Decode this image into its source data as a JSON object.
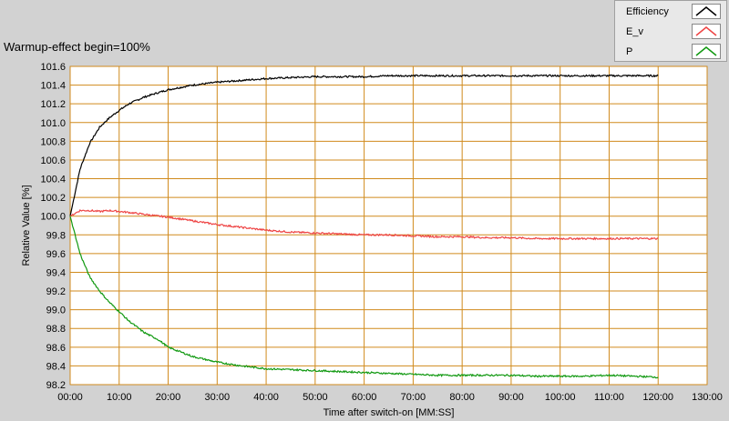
{
  "chart_data": {
    "type": "line",
    "title": "Warmup-effect begin=100%",
    "xlabel": "Time after switch-on [MM:SS]",
    "ylabel": "Relative Value [%]",
    "xlim": [
      0,
      130
    ],
    "ylim": [
      98.2,
      101.6
    ],
    "x_ticks": [
      "00:00",
      "10:00",
      "20:00",
      "30:00",
      "40:00",
      "50:00",
      "60:00",
      "70:00",
      "80:00",
      "90:00",
      "100:00",
      "110:00",
      "120:00",
      "130:00"
    ],
    "y_ticks": [
      "98.2",
      "98.4",
      "98.6",
      "98.8",
      "99.0",
      "99.2",
      "99.4",
      "99.6",
      "99.8",
      "100.0",
      "100.2",
      "100.4",
      "100.6",
      "100.8",
      "101.0",
      "101.2",
      "101.4",
      "101.6"
    ],
    "grid": true,
    "legend_position": "top-right",
    "x": [
      0,
      2,
      4,
      6,
      8,
      10,
      12,
      15,
      18,
      20,
      25,
      30,
      35,
      40,
      45,
      50,
      55,
      60,
      65,
      70,
      75,
      80,
      85,
      90,
      95,
      100,
      105,
      110,
      115,
      120
    ],
    "series": [
      {
        "name": "Efficiency",
        "color": "#000000",
        "values": [
          100.0,
          100.5,
          100.78,
          100.95,
          101.05,
          101.13,
          101.2,
          101.27,
          101.32,
          101.35,
          101.4,
          101.43,
          101.45,
          101.47,
          101.48,
          101.49,
          101.49,
          101.49,
          101.5,
          101.5,
          101.5,
          101.5,
          101.5,
          101.5,
          101.5,
          101.5,
          101.5,
          101.5,
          101.5,
          101.5
        ]
      },
      {
        "name": "E_v",
        "color": "#ee4444",
        "values": [
          100.0,
          100.06,
          100.06,
          100.05,
          100.06,
          100.05,
          100.04,
          100.02,
          100.0,
          99.99,
          99.95,
          99.91,
          99.88,
          99.85,
          99.83,
          99.82,
          99.81,
          99.8,
          99.8,
          99.79,
          99.78,
          99.78,
          99.77,
          99.77,
          99.76,
          99.76,
          99.76,
          99.76,
          99.76,
          99.76
        ]
      },
      {
        "name": "P",
        "color": "#119911",
        "values": [
          100.0,
          99.6,
          99.35,
          99.2,
          99.08,
          98.98,
          98.88,
          98.76,
          98.68,
          98.6,
          98.5,
          98.44,
          98.4,
          98.37,
          98.36,
          98.35,
          98.34,
          98.33,
          98.32,
          98.31,
          98.3,
          98.3,
          98.3,
          98.3,
          98.29,
          98.29,
          98.29,
          98.3,
          98.29,
          98.28
        ]
      }
    ]
  }
}
